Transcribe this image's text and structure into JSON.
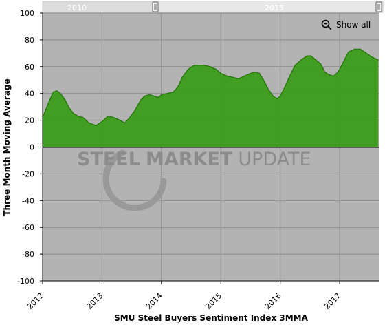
{
  "navigator": {
    "labels": [
      "2010",
      "2015"
    ]
  },
  "controls": {
    "show_all_label": "Show all",
    "zoom_icon": "zoom-out-icon"
  },
  "watermark": {
    "part1": "STEEL",
    "part2": "MARKET",
    "part3": "UPDATE"
  },
  "chart_data": {
    "type": "area",
    "title": "",
    "xlabel": "SMU Steel Buyers Sentiment Index 3MMA",
    "ylabel": "Three Month Moving Average",
    "ylim": [
      -100,
      100
    ],
    "yticks": [
      100,
      80,
      60,
      40,
      20,
      0,
      -20,
      -40,
      -60,
      -80,
      -100
    ],
    "xlim": [
      2012.0,
      2017.67
    ],
    "xticks": [
      "2012",
      "2013",
      "2014",
      "2015",
      "2016",
      "2017"
    ],
    "grid": true,
    "colors": {
      "fill": "#3c9d1a",
      "line": "#2a7a10",
      "plot_bg": "#b3b3b3"
    },
    "series": [
      {
        "values": [
          [
            2012.0,
            22
          ],
          [
            2012.1,
            33
          ],
          [
            2012.18,
            41
          ],
          [
            2012.24,
            42
          ],
          [
            2012.3,
            40
          ],
          [
            2012.38,
            35
          ],
          [
            2012.45,
            29
          ],
          [
            2012.52,
            25
          ],
          [
            2012.6,
            23
          ],
          [
            2012.68,
            22
          ],
          [
            2012.78,
            18
          ],
          [
            2012.9,
            16
          ],
          [
            2013.0,
            19
          ],
          [
            2013.1,
            23
          ],
          [
            2013.2,
            22
          ],
          [
            2013.3,
            20
          ],
          [
            2013.38,
            18
          ],
          [
            2013.45,
            21
          ],
          [
            2013.55,
            27
          ],
          [
            2013.65,
            35
          ],
          [
            2013.72,
            38
          ],
          [
            2013.8,
            39
          ],
          [
            2013.88,
            38
          ],
          [
            2013.95,
            37
          ],
          [
            2014.0,
            39
          ],
          [
            2014.1,
            40
          ],
          [
            2014.2,
            41
          ],
          [
            2014.28,
            45
          ],
          [
            2014.35,
            52
          ],
          [
            2014.45,
            58
          ],
          [
            2014.55,
            61
          ],
          [
            2014.65,
            61
          ],
          [
            2014.72,
            61
          ],
          [
            2014.82,
            60
          ],
          [
            2014.92,
            58
          ],
          [
            2015.0,
            55
          ],
          [
            2015.1,
            53
          ],
          [
            2015.2,
            52
          ],
          [
            2015.3,
            51
          ],
          [
            2015.4,
            53
          ],
          [
            2015.5,
            55
          ],
          [
            2015.58,
            56
          ],
          [
            2015.65,
            55
          ],
          [
            2015.72,
            50
          ],
          [
            2015.8,
            43
          ],
          [
            2015.88,
            38
          ],
          [
            2015.95,
            36
          ],
          [
            2016.0,
            38
          ],
          [
            2016.08,
            45
          ],
          [
            2016.15,
            52
          ],
          [
            2016.25,
            61
          ],
          [
            2016.35,
            65
          ],
          [
            2016.45,
            68
          ],
          [
            2016.52,
            68
          ],
          [
            2016.6,
            65
          ],
          [
            2016.68,
            62
          ],
          [
            2016.75,
            56
          ],
          [
            2016.82,
            54
          ],
          [
            2016.9,
            53
          ],
          [
            2016.95,
            55
          ],
          [
            2017.0,
            58
          ],
          [
            2017.08,
            65
          ],
          [
            2017.15,
            71
          ],
          [
            2017.25,
            73
          ],
          [
            2017.35,
            73
          ],
          [
            2017.45,
            70
          ],
          [
            2017.55,
            67
          ],
          [
            2017.65,
            65
          ]
        ]
      }
    ]
  }
}
